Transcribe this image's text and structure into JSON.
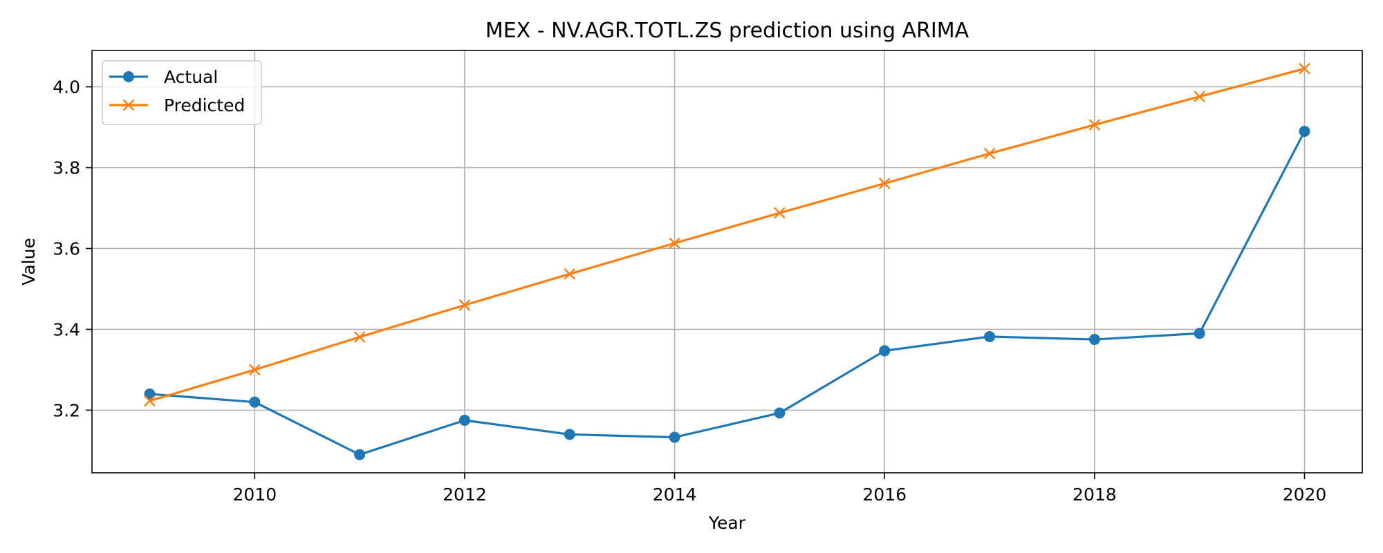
{
  "chart_data": {
    "type": "line",
    "title": "MEX - NV.AGR.TOTL.ZS prediction using ARIMA",
    "xlabel": "Year",
    "ylabel": "Value",
    "xlim": [
      2008.45,
      2020.55
    ],
    "ylim": [
      3.045,
      4.09
    ],
    "xticks": [
      2010,
      2012,
      2014,
      2016,
      2018,
      2020
    ],
    "yticks": [
      3.2,
      3.4,
      3.6,
      3.8,
      4.0
    ],
    "xtick_labels": [
      "2010",
      "2012",
      "2014",
      "2016",
      "2018",
      "2020"
    ],
    "ytick_labels": [
      "3.2",
      "3.4",
      "3.6",
      "3.8",
      "4.0"
    ],
    "grid": true,
    "legend_position": "top-left",
    "x": [
      2009,
      2010,
      2011,
      2012,
      2013,
      2014,
      2015,
      2016,
      2017,
      2018,
      2019,
      2020
    ],
    "series": [
      {
        "name": "Actual",
        "color": "#1f77b4",
        "marker": "circle",
        "values": [
          3.24,
          3.22,
          3.09,
          3.175,
          3.14,
          3.133,
          3.193,
          3.347,
          3.382,
          3.375,
          3.39,
          3.89
        ]
      },
      {
        "name": "Predicted",
        "color": "#ff7f0e",
        "marker": "x",
        "values": [
          3.223,
          3.3,
          3.381,
          3.46,
          3.537,
          3.613,
          3.688,
          3.761,
          3.835,
          3.906,
          3.976,
          4.045
        ]
      }
    ]
  }
}
